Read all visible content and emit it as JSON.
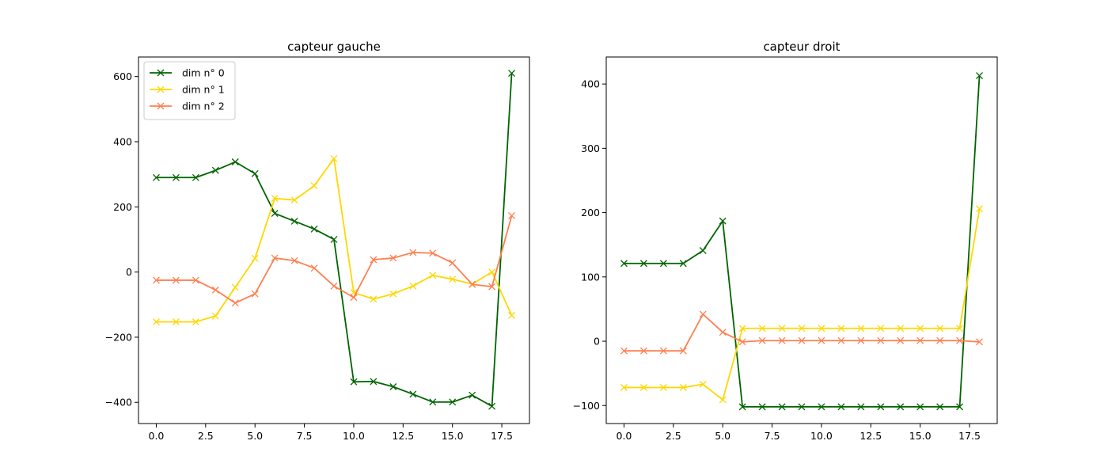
{
  "chart_data": [
    {
      "type": "line",
      "title": "capteur gauche",
      "x": [
        0,
        1,
        2,
        3,
        4,
        5,
        6,
        7,
        8,
        9,
        10,
        11,
        12,
        13,
        14,
        15,
        16,
        17,
        18
      ],
      "xlim": [
        -0.9,
        18.9
      ],
      "ylim": [
        -465,
        660
      ],
      "xticks": [
        0,
        2.5,
        5,
        7.5,
        10,
        12.5,
        15,
        17.5
      ],
      "xtick_labels": [
        "0.0",
        "2.5",
        "5.0",
        "7.5",
        "10.0",
        "12.5",
        "15.0",
        "17.5"
      ],
      "yticks": [
        -400,
        -200,
        0,
        200,
        400,
        600
      ],
      "ytick_labels": [
        "−400",
        "−200",
        "0",
        "200",
        "400",
        "600"
      ],
      "legend": {
        "location": "upper-left"
      },
      "series": [
        {
          "name": "dim n° 0",
          "color": "#006400",
          "marker": "x",
          "values": [
            290,
            290,
            290,
            312,
            338,
            302,
            180,
            156,
            132,
            100,
            -337,
            -336,
            -352,
            -375,
            -399,
            -399,
            -378,
            -412,
            610
          ]
        },
        {
          "name": "dim n° 1",
          "color": "#ffd700",
          "marker": "x",
          "values": [
            -153,
            -153,
            -153,
            -135,
            -47,
            42,
            226,
            221,
            265,
            348,
            -63,
            -83,
            -67,
            -43,
            -10,
            -22,
            -37,
            0,
            -133
          ]
        },
        {
          "name": "dim n° 2",
          "color": "#ff7f50",
          "marker": "x",
          "values": [
            -25,
            -25,
            -25,
            -55,
            -95,
            -67,
            43,
            35,
            12,
            -43,
            -78,
            38,
            43,
            60,
            58,
            28,
            -38,
            -45,
            173
          ]
        }
      ]
    },
    {
      "type": "line",
      "title": "capteur droit",
      "x": [
        0,
        1,
        2,
        3,
        4,
        5,
        6,
        7,
        8,
        9,
        10,
        11,
        12,
        13,
        14,
        15,
        16,
        17,
        18
      ],
      "xlim": [
        -0.9,
        18.9
      ],
      "ylim": [
        -128,
        442
      ],
      "xticks": [
        0,
        2.5,
        5,
        7.5,
        10,
        12.5,
        15,
        17.5
      ],
      "xtick_labels": [
        "0.0",
        "2.5",
        "5.0",
        "7.5",
        "10.0",
        "12.5",
        "15.0",
        "17.5"
      ],
      "yticks": [
        -100,
        0,
        100,
        200,
        300,
        400
      ],
      "ytick_labels": [
        "−100",
        "0",
        "100",
        "200",
        "300",
        "400"
      ],
      "series": [
        {
          "name": "dim n° 0",
          "color": "#006400",
          "marker": "x",
          "values": [
            121,
            121,
            121,
            121,
            141,
            187,
            -102,
            -102,
            -102,
            -102,
            -102,
            -102,
            -102,
            -102,
            -102,
            -102,
            -102,
            -102,
            413
          ]
        },
        {
          "name": "dim n° 1",
          "color": "#ffd700",
          "marker": "x",
          "values": [
            -72,
            -72,
            -72,
            -72,
            -67,
            -91,
            20,
            20,
            20,
            20,
            20,
            20,
            20,
            20,
            20,
            20,
            20,
            20,
            206
          ]
        },
        {
          "name": "dim n° 2",
          "color": "#ff7f50",
          "marker": "x",
          "values": [
            -15,
            -15,
            -15,
            -15,
            42,
            14,
            -1,
            1,
            1,
            1,
            1,
            1,
            1,
            1,
            1,
            1,
            1,
            1,
            -1
          ]
        }
      ]
    }
  ]
}
